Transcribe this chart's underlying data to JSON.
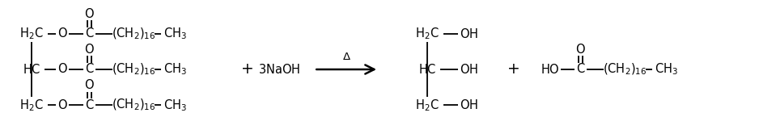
{
  "figsize": [
    9.38,
    1.71
  ],
  "dpi": 100,
  "background": "white",
  "fontsize": 10.5,
  "bond_lw": 1.3,
  "text_color": "black",
  "xlim": [
    0,
    938
  ],
  "ylim": [
    0,
    171
  ]
}
